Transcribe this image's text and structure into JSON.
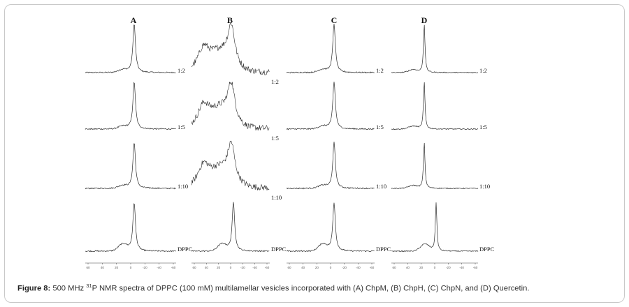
{
  "figure": {
    "panels": [
      {
        "letter": "A",
        "ratios": [
          "1:2",
          "1:5",
          "1:10",
          "DPPC"
        ]
      },
      {
        "letter": "B",
        "ratios": [
          "1:2",
          "1:5",
          "1:10",
          "DPPC"
        ]
      },
      {
        "letter": "C",
        "ratios": [
          "1:2",
          "1:5",
          "1:10",
          "DPPC"
        ]
      },
      {
        "letter": "D",
        "ratios": [
          "1:2",
          "1:5",
          "1:10",
          "DPPC"
        ]
      }
    ],
    "axis_ticks": [
      "60",
      "40",
      "20",
      "0",
      "-20",
      "-40",
      "-60"
    ]
  },
  "caption": {
    "label": "Figure 8:",
    "text_before_sup": " 500 MHz ",
    "sup": "31",
    "text_after_sup": "P NMR spectra of DPPC (100 mM) multilamellar vesicles incorporated with (A) ChpM, (B) ChpH, (C) ChpN, and (D) Quercetin."
  }
}
